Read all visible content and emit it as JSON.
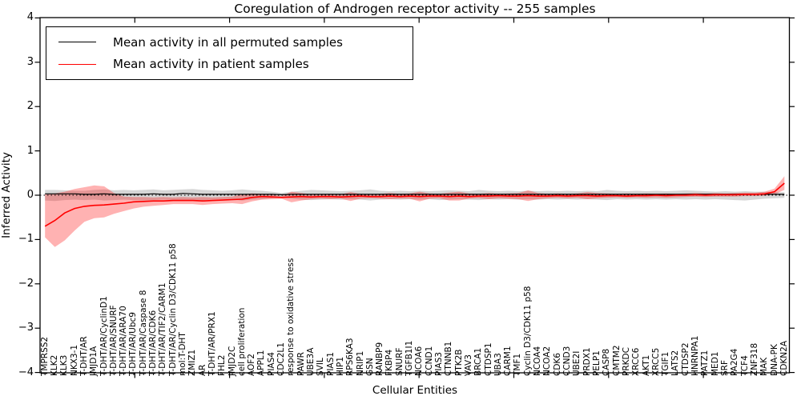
{
  "figure": {
    "title": "Coregulation of Androgen receptor activity -- 255 samples",
    "xlabel": "Cellular Entities",
    "ylabel": "Inferred Activity",
    "legend": {
      "entries": [
        {
          "label": "Mean activity in all permuted samples",
          "color": "#000000"
        },
        {
          "label": "Mean activity in patient samples",
          "color": "#ff0000"
        }
      ]
    }
  },
  "chart_data": {
    "type": "line",
    "title": "Coregulation of Androgen receptor activity -- 255 samples",
    "xlabel": "Cellular Entities",
    "ylabel": "Inferred Activity",
    "ylim": [
      -4,
      4
    ],
    "grid": false,
    "legend_position": "upper left",
    "zero_line": {
      "style": "dotted",
      "color": "#000000",
      "y": 0
    },
    "y_ticks": [
      {
        "v": 4,
        "label": "4"
      },
      {
        "v": 3,
        "label": "3"
      },
      {
        "v": 2,
        "label": "2"
      },
      {
        "v": 1,
        "label": "1"
      },
      {
        "v": 0,
        "label": "0"
      },
      {
        "v": -1,
        "label": "−1"
      },
      {
        "v": -2,
        "label": "−2"
      },
      {
        "v": -3,
        "label": "−3"
      },
      {
        "v": -4,
        "label": "−4"
      }
    ],
    "categories": [
      "TMPRSS2",
      "KLK2",
      "KLK3",
      "NKX3-1",
      "T-DHT/AR",
      "JMJD1A",
      "T-DHT/AR/CyclinD1",
      "T-DHT/AR/SNURF",
      "T-DHT/AR/ARA70",
      "T-DHT/AR/Ubc9",
      "T-DHT/AR/Caspase 8",
      "T-DHT/AR/CDK6",
      "T-DHT/AR/TIF2/CARM1",
      "T-DHT/AR/Cyclin D3/CDK11 p58",
      "mol:T-DHT",
      "ZMIZ1",
      "AR",
      "T-DHT/AR/PRX1",
      "FHL2",
      "JMJD2C",
      "cell proliferation",
      "AOF2",
      "APPL1",
      "PIAS4",
      "CDC2L1",
      "response to oxidative stress",
      "PAWR",
      "UBE3A",
      "SVIL",
      "PIAS1",
      "HIP1",
      "RPS6KA3",
      "NRIP1",
      "GSN",
      "RANBP9",
      "FKBP4",
      "SNURF",
      "TGFB1I1",
      "NCOA6",
      "CCND1",
      "PIAS3",
      "CTNNB1",
      "PTK2B",
      "VAV3",
      "BRCA1",
      "CTDSP1",
      "UBA3",
      "CARM1",
      "TMF1",
      "Cyclin D3/CDK11 p58",
      "NCOA4",
      "NCOA2",
      "CDK6",
      "CCND3",
      "UBE2I",
      "PRDX1",
      "PELP1",
      "CASP8",
      "CMTM2",
      "PRKDC",
      "XRCC6",
      "AKT1",
      "XRCC5",
      "TGIF1",
      "LATS2",
      "CTDSP2",
      "HNRNPA1",
      "PATZ1",
      "MED1",
      "SRF",
      "PA2G4",
      "TCF4",
      "ZNF318",
      "MAK",
      "DNA-PK",
      "CDKN2A"
    ],
    "series": [
      {
        "name": "Mean activity in all permuted samples",
        "color": "#000000",
        "values": [
          0.03,
          0.03,
          0.03,
          0.03,
          0.02,
          0.02,
          0.03,
          0.02,
          0.02,
          0.02,
          0.02,
          0.03,
          0.02,
          0.02,
          0.04,
          0.03,
          0.02,
          0.02,
          0.02,
          0.02,
          0.02,
          0.02,
          0.02,
          0.02,
          0.01,
          0.02,
          0.02,
          0.02,
          0.02,
          0.02,
          0.02,
          0.02,
          0.02,
          0.02,
          0.02,
          0.02,
          0.02,
          0.02,
          0.02,
          0.02,
          0.02,
          0.02,
          0.02,
          0.02,
          0.02,
          0.02,
          0.02,
          0.02,
          0.02,
          0.02,
          0.02,
          0.02,
          0.02,
          0.02,
          0.02,
          0.02,
          0.02,
          0.02,
          0.02,
          0.02,
          0.02,
          0.02,
          0.02,
          0.02,
          0.02,
          0.02,
          0.02,
          0.02,
          0.02,
          0.02,
          0.02,
          0.02,
          0.02,
          0.02,
          0.02,
          0.02
        ]
      },
      {
        "name": "Mean activity in patient samples",
        "color": "#ff0000",
        "values": [
          -0.7,
          -0.57,
          -0.4,
          -0.3,
          -0.25,
          -0.23,
          -0.22,
          -0.2,
          -0.18,
          -0.15,
          -0.14,
          -0.13,
          -0.13,
          -0.12,
          -0.12,
          -0.12,
          -0.13,
          -0.12,
          -0.11,
          -0.1,
          -0.09,
          -0.05,
          -0.03,
          -0.04,
          -0.05,
          -0.04,
          -0.03,
          -0.04,
          -0.03,
          -0.03,
          -0.04,
          -0.03,
          -0.02,
          -0.03,
          -0.03,
          -0.02,
          -0.03,
          -0.02,
          -0.03,
          -0.02,
          -0.02,
          -0.03,
          -0.02,
          -0.03,
          -0.02,
          -0.02,
          -0.01,
          -0.02,
          -0.02,
          -0.01,
          -0.02,
          -0.02,
          -0.01,
          -0.02,
          -0.01,
          -0.01,
          -0.02,
          -0.01,
          -0.01,
          -0.02,
          -0.01,
          -0.01,
          0.0,
          -0.01,
          0.0,
          0.0,
          0.01,
          0.0,
          0.01,
          0.01,
          0.01,
          0.02,
          0.02,
          0.03,
          0.08,
          0.27
        ]
      }
    ],
    "bands": [
      {
        "name": "permuted std band",
        "color": "#000000",
        "alpha": 0.16,
        "upper": [
          0.12,
          0.12,
          0.11,
          0.1,
          0.1,
          0.12,
          0.13,
          0.11,
          0.12,
          0.11,
          0.12,
          0.13,
          0.11,
          0.12,
          0.13,
          0.14,
          0.12,
          0.11,
          0.1,
          0.11,
          0.13,
          0.11,
          0.1,
          0.08,
          0.05,
          0.08,
          0.1,
          0.12,
          0.11,
          0.1,
          0.09,
          0.1,
          0.11,
          0.13,
          0.1,
          0.09,
          0.1,
          0.09,
          0.1,
          0.09,
          0.1,
          0.11,
          0.1,
          0.09,
          0.12,
          0.1,
          0.09,
          0.1,
          0.09,
          0.1,
          0.09,
          0.1,
          0.09,
          0.1,
          0.09,
          0.1,
          0.09,
          0.12,
          0.1,
          0.09,
          0.1,
          0.09,
          0.1,
          0.09,
          0.1,
          0.11,
          0.1,
          0.09,
          0.08,
          0.09,
          0.08,
          0.09,
          0.08,
          0.08,
          0.07,
          0.07
        ],
        "lower": [
          -0.12,
          -0.13,
          -0.11,
          -0.1,
          -0.11,
          -0.1,
          -0.12,
          -0.11,
          -0.1,
          -0.11,
          -0.12,
          -0.11,
          -0.1,
          -0.11,
          -0.12,
          -0.11,
          -0.12,
          -0.1,
          -0.09,
          -0.1,
          -0.12,
          -0.1,
          -0.09,
          -0.07,
          -0.05,
          -0.08,
          -0.1,
          -0.11,
          -0.1,
          -0.09,
          -0.1,
          -0.09,
          -0.1,
          -0.12,
          -0.1,
          -0.09,
          -0.1,
          -0.09,
          -0.1,
          -0.09,
          -0.11,
          -0.1,
          -0.09,
          -0.1,
          -0.11,
          -0.09,
          -0.1,
          -0.09,
          -0.1,
          -0.09,
          -0.1,
          -0.09,
          -0.1,
          -0.09,
          -0.1,
          -0.09,
          -0.1,
          -0.11,
          -0.09,
          -0.1,
          -0.09,
          -0.1,
          -0.09,
          -0.1,
          -0.09,
          -0.1,
          -0.09,
          -0.1,
          -0.09,
          -0.1,
          -0.11,
          -0.12,
          -0.1,
          -0.08,
          -0.07,
          -0.06
        ]
      },
      {
        "name": "patient std band",
        "color": "#ff0000",
        "alpha": 0.3,
        "upper": [
          0.02,
          0.04,
          0.08,
          0.14,
          0.18,
          0.22,
          0.2,
          0.05,
          -0.03,
          -0.04,
          -0.04,
          -0.05,
          -0.04,
          -0.05,
          -0.04,
          -0.05,
          -0.04,
          -0.05,
          -0.04,
          -0.03,
          0.02,
          0.04,
          0.03,
          0.01,
          -0.02,
          0.08,
          0.05,
          0.02,
          0.02,
          0.03,
          0.02,
          0.07,
          0.03,
          0.02,
          0.03,
          0.05,
          0.03,
          0.04,
          0.08,
          0.04,
          0.03,
          0.06,
          0.08,
          0.04,
          0.03,
          0.05,
          0.03,
          0.04,
          0.05,
          0.11,
          0.05,
          0.03,
          0.04,
          0.03,
          0.04,
          0.07,
          0.05,
          0.04,
          0.03,
          0.04,
          0.03,
          0.04,
          0.03,
          0.04,
          0.03,
          0.04,
          0.05,
          0.04,
          0.05,
          0.04,
          0.05,
          0.06,
          0.06,
          0.08,
          0.15,
          0.43
        ],
        "lower": [
          -0.95,
          -1.17,
          -1.02,
          -0.8,
          -0.6,
          -0.52,
          -0.5,
          -0.42,
          -0.36,
          -0.3,
          -0.26,
          -0.24,
          -0.22,
          -0.2,
          -0.2,
          -0.2,
          -0.22,
          -0.2,
          -0.19,
          -0.18,
          -0.2,
          -0.14,
          -0.1,
          -0.09,
          -0.08,
          -0.16,
          -0.12,
          -0.09,
          -0.08,
          -0.09,
          -0.08,
          -0.13,
          -0.08,
          -0.07,
          -0.08,
          -0.09,
          -0.08,
          -0.08,
          -0.14,
          -0.08,
          -0.07,
          -0.12,
          -0.12,
          -0.08,
          -0.07,
          -0.09,
          -0.07,
          -0.08,
          -0.09,
          -0.13,
          -0.09,
          -0.07,
          -0.06,
          -0.07,
          -0.06,
          -0.09,
          -0.07,
          -0.06,
          -0.05,
          -0.06,
          -0.05,
          -0.06,
          -0.05,
          -0.06,
          -0.05,
          -0.04,
          -0.03,
          -0.04,
          -0.03,
          -0.03,
          -0.03,
          -0.02,
          -0.02,
          -0.01,
          0.02,
          0.12
        ]
      }
    ]
  }
}
